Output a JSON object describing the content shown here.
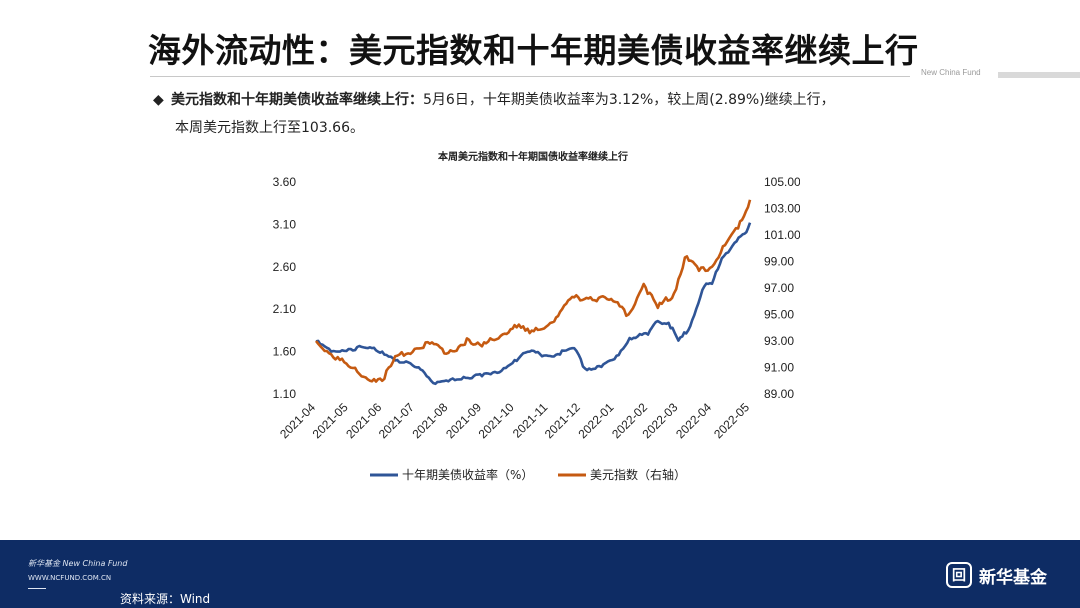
{
  "header": {
    "title": "海外流动性：美元指数和十年期美债收益率继续上行",
    "brand_small": "New China Fund"
  },
  "bullet": {
    "bold": "美元指数和十年期美债收益率继续上行：",
    "text1": "5月6日，十年期美债收益率为3.12%，较上周(2.89%)继续上行，",
    "text2": "本周美元指数上行至103.66。"
  },
  "footer": {
    "logo_cn": "新华基金 New China Fund",
    "url": "WWW.NCFUND.COM.CN",
    "source": "资料来源：Wind",
    "brand_name": "新华基金",
    "brand_mark": "回"
  },
  "colors": {
    "series1": "#2f5597",
    "series2": "#c55a11",
    "footer_bg": "#0e2c64"
  },
  "chart_data": {
    "type": "line",
    "title": "本周美元指数和十年期国债收益率继续上行",
    "x_tick_labels": [
      "2021-04",
      "2021-05",
      "2021-06",
      "2021-07",
      "2021-08",
      "2021-09",
      "2021-10",
      "2021-11",
      "2021-12",
      "2022-01",
      "2022-02",
      "2022-03",
      "2022-04",
      "2022-05"
    ],
    "y_left": {
      "ticks": [
        "1.10",
        "1.60",
        "2.10",
        "2.60",
        "3.10",
        "3.60"
      ],
      "lim": [
        1.1,
        3.6
      ]
    },
    "y_right": {
      "ticks": [
        "89.00",
        "91.00",
        "93.00",
        "95.00",
        "97.00",
        "99.00",
        "101.00",
        "103.00",
        "105.00"
      ],
      "lim": [
        89.0,
        105.0
      ]
    },
    "legend_position": "bottom",
    "series": [
      {
        "name": "十年期美债收益率（%）",
        "axis": "left",
        "x": [
          "2021-04-01",
          "2021-04-15",
          "2021-05-01",
          "2021-05-15",
          "2021-06-01",
          "2021-06-15",
          "2021-07-01",
          "2021-07-10",
          "2021-07-20",
          "2021-08-01",
          "2021-08-15",
          "2021-09-01",
          "2021-09-15",
          "2021-10-01",
          "2021-10-15",
          "2021-11-01",
          "2021-11-10",
          "2021-11-25",
          "2021-12-05",
          "2021-12-20",
          "2022-01-01",
          "2022-01-15",
          "2022-02-01",
          "2022-02-10",
          "2022-02-20",
          "2022-03-01",
          "2022-03-10",
          "2022-03-25",
          "2022-04-01",
          "2022-04-10",
          "2022-04-20",
          "2022-05-01",
          "2022-05-06"
        ],
        "values": [
          1.72,
          1.6,
          1.63,
          1.65,
          1.6,
          1.5,
          1.42,
          1.35,
          1.22,
          1.25,
          1.3,
          1.31,
          1.35,
          1.5,
          1.6,
          1.55,
          1.57,
          1.64,
          1.4,
          1.42,
          1.51,
          1.76,
          1.8,
          1.96,
          1.94,
          1.73,
          1.85,
          2.37,
          2.4,
          2.7,
          2.85,
          2.99,
          3.12
        ]
      },
      {
        "name": "美元指数（右轴）",
        "axis": "right",
        "x": [
          "2021-04-01",
          "2021-04-15",
          "2021-05-01",
          "2021-05-15",
          "2021-06-01",
          "2021-06-15",
          "2021-07-01",
          "2021-07-15",
          "2021-08-01",
          "2021-08-20",
          "2021-09-01",
          "2021-09-20",
          "2021-10-01",
          "2021-10-15",
          "2021-11-01",
          "2021-11-12",
          "2021-11-25",
          "2021-12-10",
          "2021-12-31",
          "2022-01-14",
          "2022-01-28",
          "2022-02-10",
          "2022-02-25",
          "2022-03-07",
          "2022-03-20",
          "2022-04-01",
          "2022-04-15",
          "2022-04-25",
          "2022-05-06"
        ],
        "values": [
          93.0,
          92.0,
          91.1,
          90.3,
          90.0,
          91.9,
          92.4,
          92.8,
          92.1,
          93.1,
          92.6,
          93.5,
          94.2,
          93.6,
          94.2,
          95.2,
          96.3,
          96.3,
          96.0,
          95.0,
          97.3,
          95.5,
          96.6,
          99.3,
          98.3,
          98.6,
          100.5,
          101.5,
          103.66
        ]
      }
    ]
  }
}
